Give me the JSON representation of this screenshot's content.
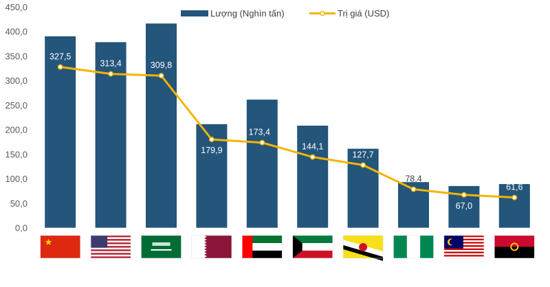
{
  "chart_data": {
    "type": "bar+line",
    "categories": [
      "China",
      "United States",
      "Saudi Arabia",
      "Qatar",
      "United Arab Emirates",
      "Kuwait",
      "Brunei",
      "Nigeria",
      "Malaysia",
      "Angola"
    ],
    "category_icons": [
      "flag-china",
      "flag-usa",
      "flag-saudi-arabia",
      "flag-qatar",
      "flag-uae",
      "flag-kuwait",
      "flag-brunei",
      "flag-nigeria",
      "flag-malaysia",
      "flag-angola"
    ],
    "series": [
      {
        "name": "Lượng (Nghìn tấn)",
        "type": "bar",
        "color": "#24557b",
        "values": [
          390,
          378,
          416,
          211,
          261,
          208,
          161,
          93,
          85,
          89
        ]
      },
      {
        "name": "Trị giá (USD)",
        "type": "line",
        "color": "#f5b400",
        "values": [
          327.5,
          313.4,
          309.8,
          179.9,
          173.4,
          144.1,
          127.7,
          78.4,
          67.0,
          61.6
        ],
        "labels": [
          "327,5",
          "313,4",
          "309,8",
          "179,9",
          "173,4",
          "144,1",
          "127,7",
          "78,4",
          "67,0",
          "61,6"
        ]
      }
    ],
    "ylim": [
      0,
      450
    ],
    "yticks": [
      "0,0",
      "50,0",
      "100,0",
      "150,0",
      "200,0",
      "250,0",
      "300,0",
      "350,0",
      "400,0",
      "450,0"
    ],
    "grid": false,
    "legend_position": "top"
  }
}
